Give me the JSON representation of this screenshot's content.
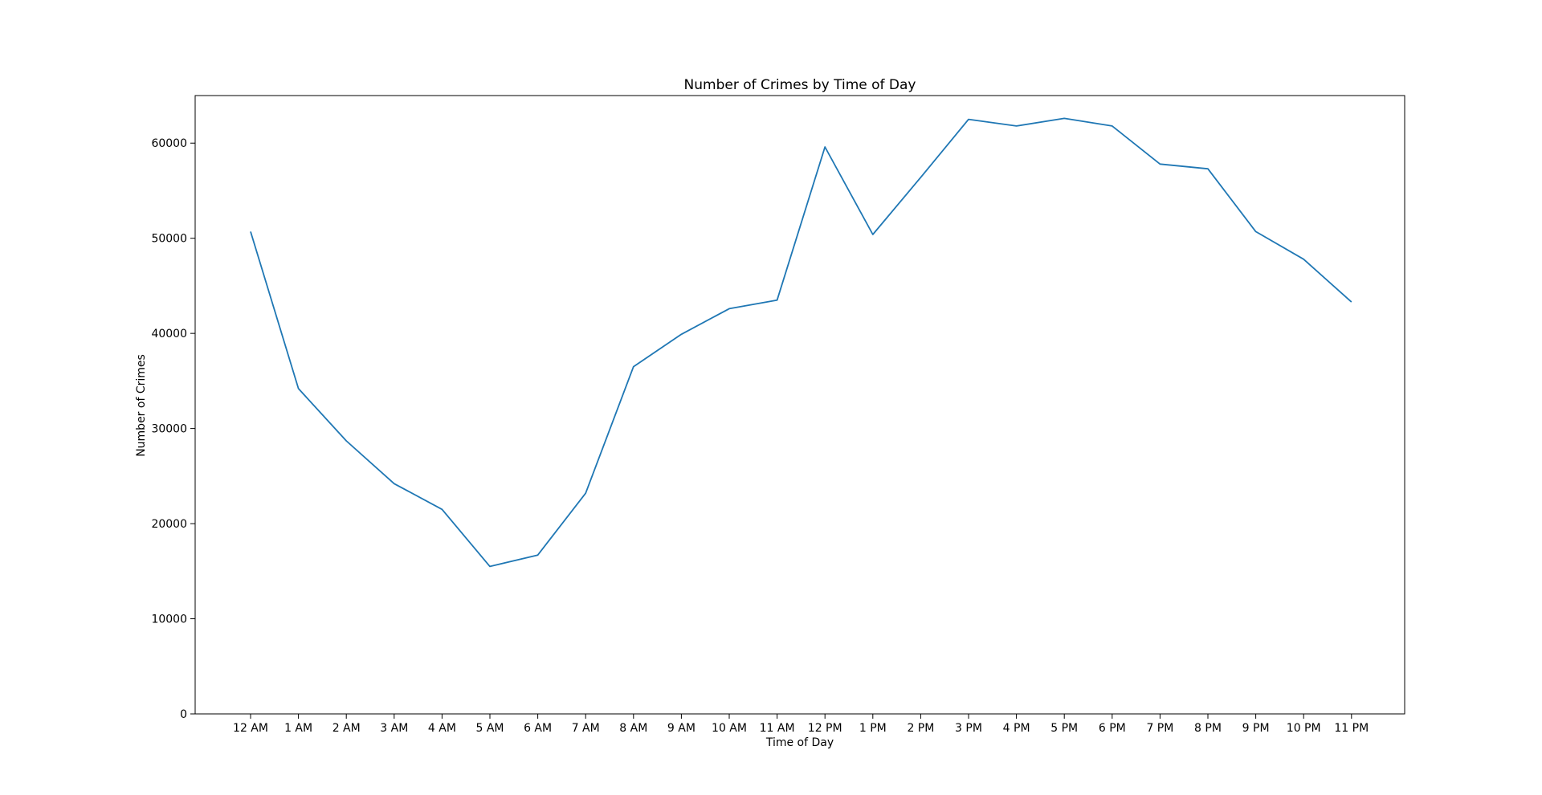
{
  "chart_data": {
    "type": "line",
    "title": "Number of Crimes by Time of Day",
    "xlabel": "Time of Day",
    "ylabel": "Number of Crimes",
    "categories": [
      "12 AM",
      "1 AM",
      "2 AM",
      "3 AM",
      "4 AM",
      "5 AM",
      "6 AM",
      "7 AM",
      "8 AM",
      "9 AM",
      "10 AM",
      "11 AM",
      "12 PM",
      "1 PM",
      "2 PM",
      "3 PM",
      "4 PM",
      "5 PM",
      "6 PM",
      "7 PM",
      "8 PM",
      "9 PM",
      "10 PM",
      "11 PM"
    ],
    "series": [
      {
        "values": [
          50700,
          34200,
          28700,
          24200,
          21500,
          15500,
          16700,
          23200,
          36500,
          39900,
          42600,
          43500,
          59600,
          50400,
          56400,
          62500,
          61800,
          62600,
          61800,
          57800,
          57300,
          50700,
          47800,
          43300
        ],
        "color": "#1f77b4"
      }
    ],
    "ylim": [
      0,
      65000
    ],
    "yticks": [
      0,
      10000,
      20000,
      30000,
      40000,
      50000,
      60000
    ],
    "grid": false,
    "legend": "none"
  }
}
